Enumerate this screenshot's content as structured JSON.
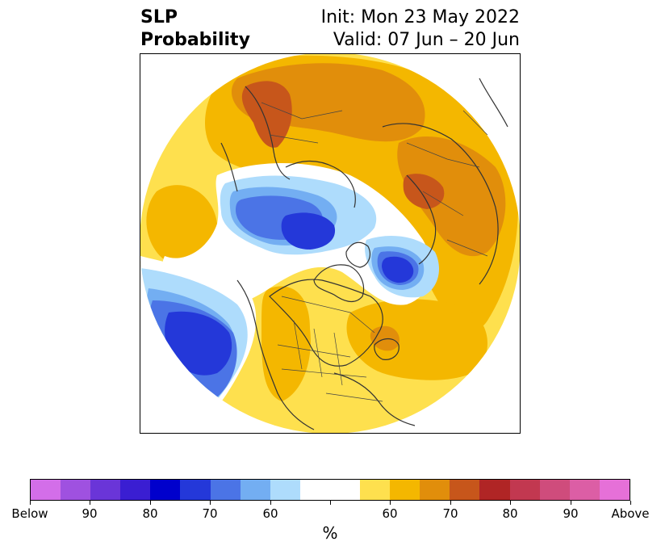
{
  "title": {
    "left_line1": "SLP",
    "left_line2": "Probability",
    "right_line1": "Init: Mon 23 May 2022",
    "right_line2": "Valid: 07 Jun – 20 Jun"
  },
  "colorbar": {
    "colors": [
      "#d36ee9",
      "#9f51e0",
      "#6a35d8",
      "#3a1ed2",
      "#0000cc",
      "#2438d9",
      "#4b74e6",
      "#73aef2",
      "#aedcfc",
      "#ffffff",
      "#ffffff",
      "#fee04e",
      "#f4b700",
      "#e18e0b",
      "#c7561b",
      "#b02525",
      "#c23850",
      "#cf4c7c",
      "#dc5ea5",
      "#e670d8"
    ],
    "tick_labels": [
      "Below",
      "90",
      "80",
      "70",
      "60",
      "",
      "60",
      "70",
      "80",
      "90",
      "Above"
    ],
    "unit": "%"
  },
  "map": {
    "projection": "north-polar-stereographic",
    "fill_colors": {
      "white": "#ffffff",
      "above_55": "#fee04e",
      "above_60": "#f4b700",
      "above_65": "#e18e0b",
      "above_70": "#c7561b",
      "below_55": "#aedcfc",
      "below_60": "#73aef2",
      "below_65": "#4b74e6",
      "below_70": "#2438d9"
    },
    "coastline_color": "#333333",
    "border_color": "#444444"
  }
}
